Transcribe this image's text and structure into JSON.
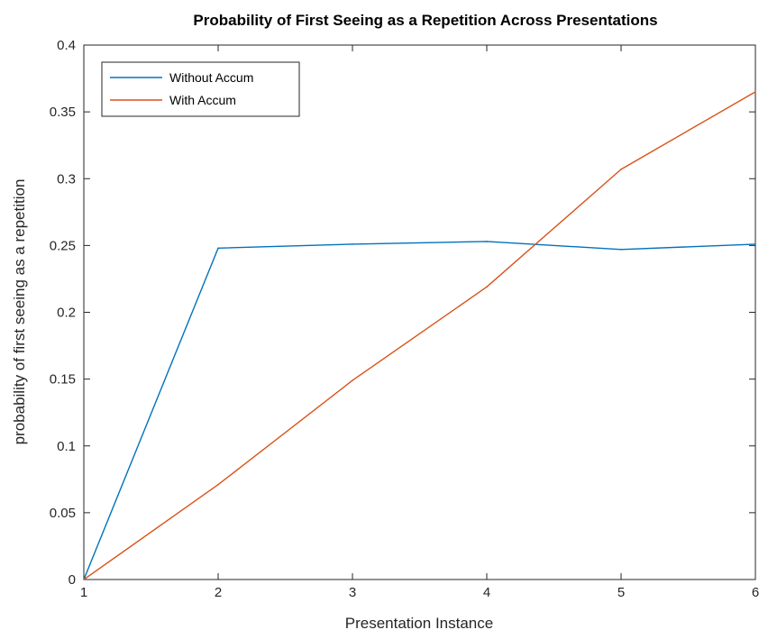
{
  "chart_data": {
    "type": "line",
    "title": "Probability of First Seeing as a Repetition Across Presentations",
    "xlabel": "Presentation Instance",
    "ylabel": "probability of first seeing as a repetition",
    "xlim": [
      1,
      6
    ],
    "ylim": [
      0,
      0.4
    ],
    "xticks": [
      1,
      2,
      3,
      4,
      5,
      6
    ],
    "yticks": [
      0,
      0.05,
      0.1,
      0.15,
      0.2,
      0.25,
      0.3,
      0.35,
      0.4
    ],
    "xtick_labels": [
      "1",
      "2",
      "3",
      "4",
      "5",
      "6"
    ],
    "ytick_labels": [
      "0",
      "0.05",
      "0.1",
      "0.15",
      "0.2",
      "0.25",
      "0.3",
      "0.35",
      "0.4"
    ],
    "grid": false,
    "legend_position": "top-left",
    "x": [
      1,
      2,
      3,
      4,
      5,
      6
    ],
    "series": [
      {
        "name": "Without Accum",
        "color": "#0072BD",
        "values": [
          0,
          0.248,
          0.251,
          0.253,
          0.247,
          0.251
        ]
      },
      {
        "name": "With Accum",
        "color": "#D95319",
        "values": [
          0,
          0.071,
          0.149,
          0.219,
          0.307,
          0.365
        ]
      }
    ]
  }
}
